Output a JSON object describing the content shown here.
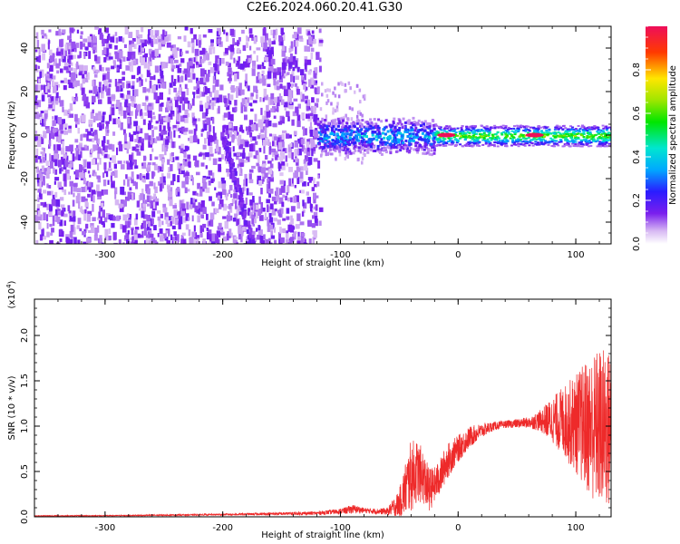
{
  "title": "C2E6.2024.060.20.41.G30",
  "colors": {
    "snr_line": "#ee2a2a",
    "spectrogram_sparse": "#ddbbf5",
    "spectrogram_dense": "#7a20ee"
  },
  "chart_data": [
    {
      "type": "heatmap",
      "title": "C2E6.2024.060.20.41.G30",
      "xlabel": "Height of straight line (km)",
      "ylabel": "Frequency (Hz)",
      "xlim": [
        -360,
        130
      ],
      "ylim": [
        -50,
        50
      ],
      "xticks": [
        -300,
        -200,
        -100,
        0,
        100
      ],
      "yticks": [
        -40,
        -20,
        0,
        20,
        40
      ],
      "colorbar": {
        "label": "Normalized spectral amplitude",
        "range": [
          0.0,
          1.0
        ],
        "ticks": [
          "0.0",
          "0.2",
          "0.4",
          "0.6",
          "0.8"
        ],
        "tick_values": [
          0.0,
          0.2,
          0.4,
          0.6,
          0.8
        ]
      },
      "grid": false,
      "features": [
        {
          "x_range": [
            -360,
            -118
          ],
          "f_range": [
            -50,
            50
          ],
          "amplitude": 0.08,
          "density": "dense noise"
        },
        {
          "x_range": [
            -118,
            -80
          ],
          "f_range": [
            -12,
            25
          ],
          "amplitude": 0.05,
          "density": "sparse"
        },
        {
          "x_range": [
            -120,
            -20
          ],
          "f_center": 0,
          "f_halfwidth": 6,
          "amplitude": 0.35
        },
        {
          "x_range": [
            -20,
            130
          ],
          "f_center": 0,
          "f_halfwidth": 3,
          "amplitude": 0.6
        },
        {
          "x": -10,
          "f": 0,
          "amplitude": 1.0
        },
        {
          "x": 65,
          "f": 0,
          "amplitude": 1.0
        },
        {
          "x_range": [
            -200,
            -175
          ],
          "f_range": [
            -50,
            0
          ],
          "amplitude": 0.15,
          "note": "oblique streak"
        }
      ]
    },
    {
      "type": "line",
      "xlabel": "Height of straight line (km)",
      "ylabel": "SNR (10 * v/v)",
      "y_scale_label": "(x10",
      "y_scale_exp": "4",
      "y_scale_close": ")",
      "xlim": [
        -360,
        130
      ],
      "ylim": [
        0.0,
        2.4
      ],
      "xticks": [
        -300,
        -200,
        -100,
        0,
        100
      ],
      "yticks": [
        "0.0",
        "0.5",
        "1.0",
        "1.5",
        "2.0"
      ],
      "ytick_values": [
        0.0,
        0.5,
        1.0,
        1.5,
        2.0
      ],
      "grid": false,
      "series": [
        {
          "envelope_x": [
            -360,
            -300,
            -200,
            -120,
            -100,
            -95,
            -90,
            -85,
            -80,
            -70,
            -60,
            -50,
            -45,
            -40,
            -35,
            -30,
            -25,
            -20,
            -15,
            -10,
            0,
            10,
            20,
            30,
            40,
            60,
            70,
            80,
            90,
            100,
            110,
            120,
            130
          ],
          "envelope_mean": [
            0.01,
            0.012,
            0.025,
            0.04,
            0.06,
            0.07,
            0.085,
            0.08,
            0.07,
            0.06,
            0.06,
            0.15,
            0.3,
            0.45,
            0.5,
            0.45,
            0.3,
            0.35,
            0.45,
            0.6,
            0.75,
            0.88,
            0.95,
            1.0,
            1.02,
            1.04,
            1.06,
            1.07,
            1.05,
            1.03,
            1.0,
            0.98,
            0.95
          ],
          "envelope_spread": [
            0.005,
            0.005,
            0.01,
            0.02,
            0.03,
            0.04,
            0.05,
            0.04,
            0.03,
            0.03,
            0.04,
            0.15,
            0.3,
            0.4,
            0.35,
            0.3,
            0.25,
            0.2,
            0.2,
            0.2,
            0.15,
            0.12,
            0.08,
            0.05,
            0.04,
            0.06,
            0.12,
            0.25,
            0.4,
            0.55,
            0.75,
            0.9,
            0.9
          ]
        }
      ]
    }
  ]
}
